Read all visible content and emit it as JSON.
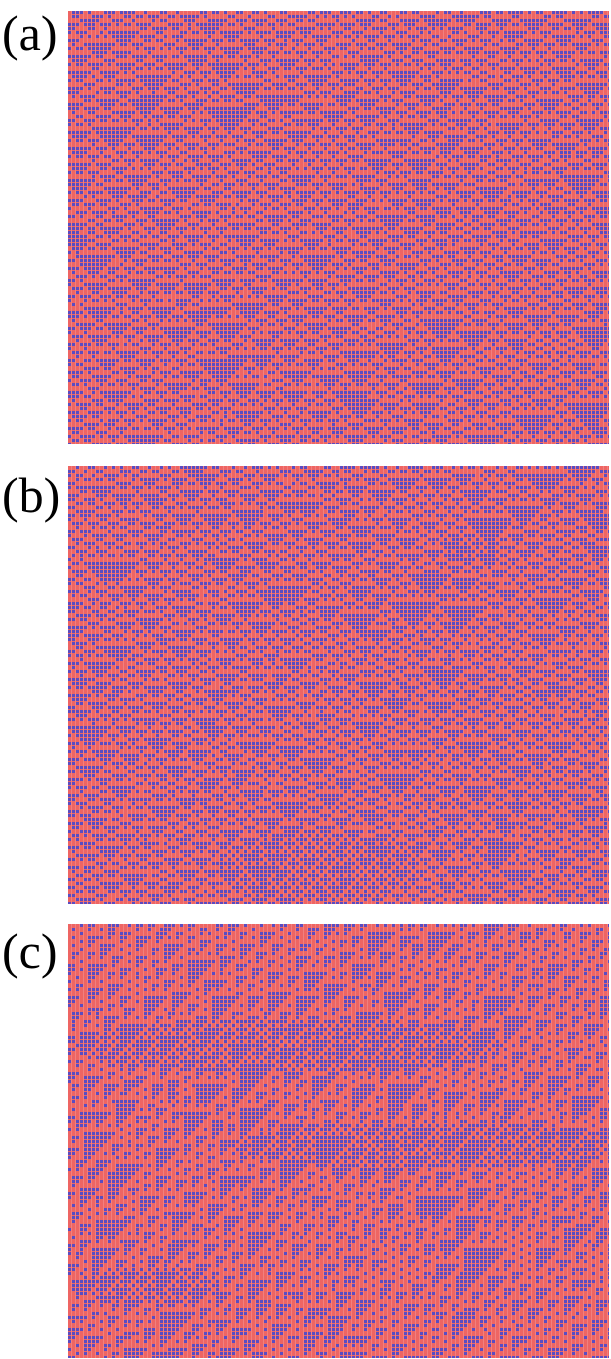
{
  "figure": {
    "panels": [
      {
        "label": "(a)"
      },
      {
        "label": "(b)"
      },
      {
        "label": "(c)"
      }
    ]
  },
  "colors": {
    "state_on": "#ee6563",
    "state_off": "#5a4cc2",
    "background": "#ffffff"
  }
}
